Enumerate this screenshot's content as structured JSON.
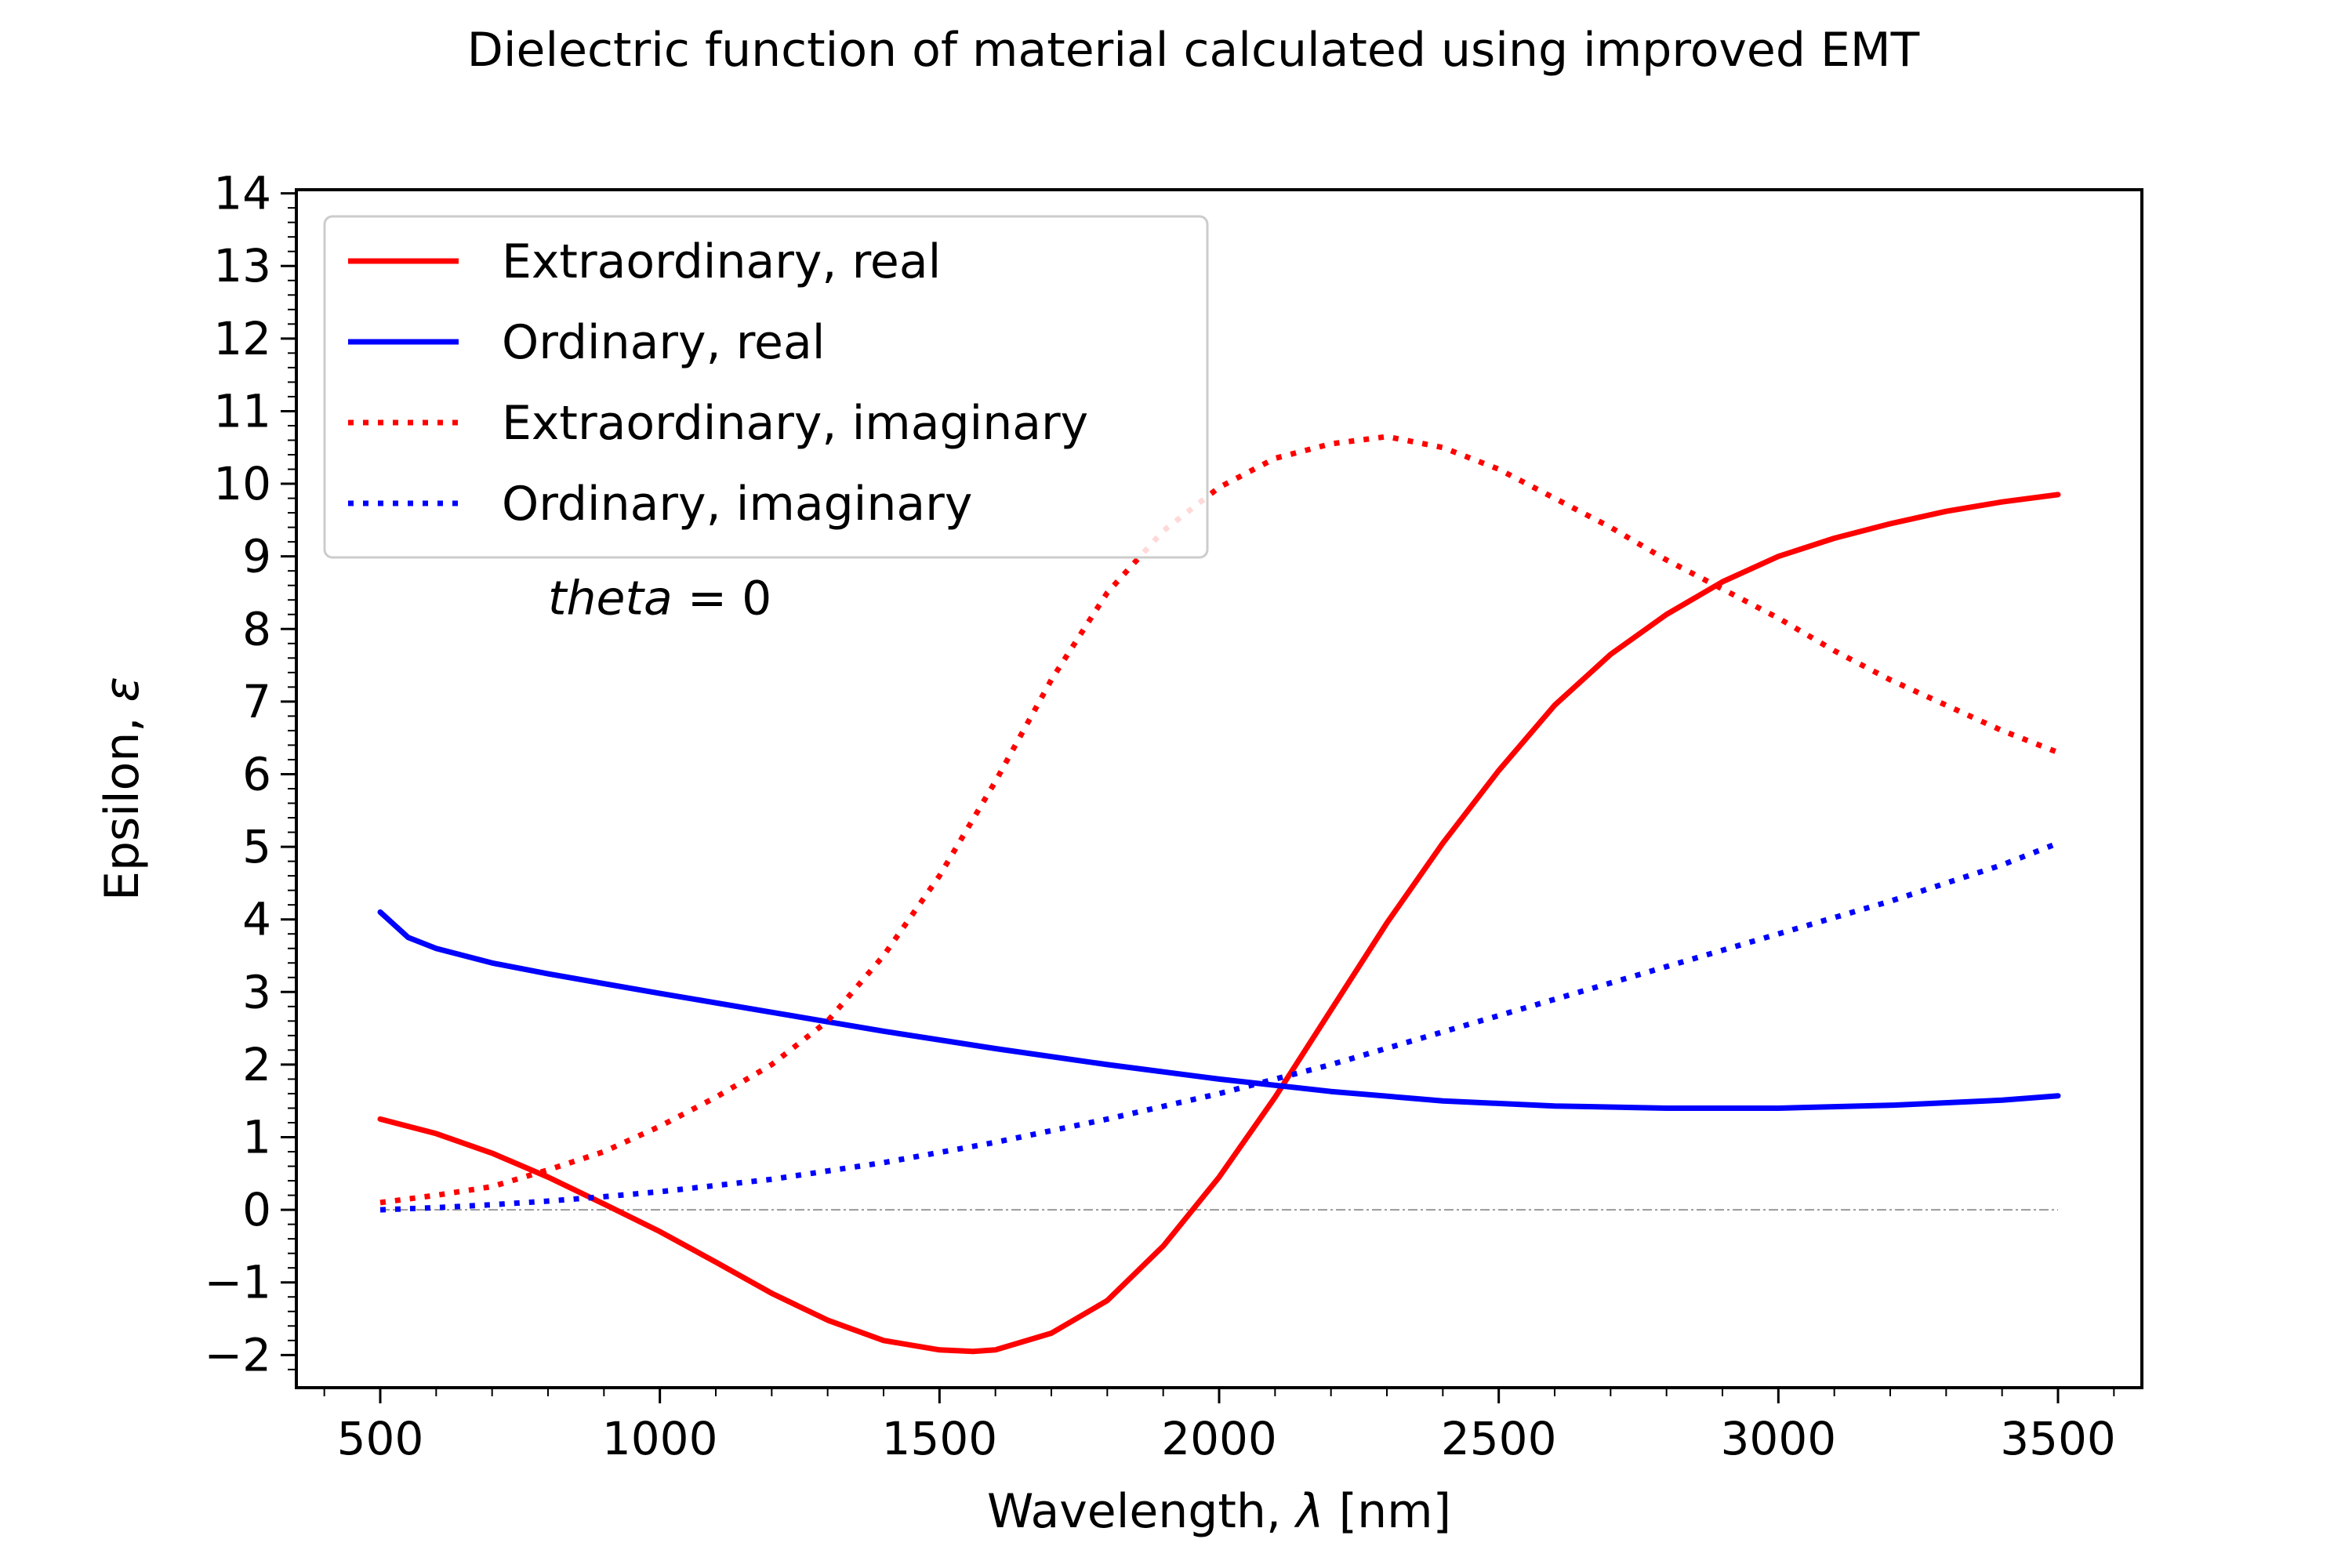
{
  "chart_data": {
    "type": "line",
    "title": "Dielectric function of material calculated using improved EMT",
    "xlabel": "Wavelength, λ [nm]",
    "xlabel_parts": {
      "prefix": "Wavelength, ",
      "symbol": "λ",
      "suffix": " [nm]"
    },
    "ylabel": "Epsilon, ε",
    "ylabel_parts": {
      "prefix": "Epsilon, ",
      "symbol": "ε"
    },
    "xlim": [
      350,
      3650
    ],
    "ylim": [
      -2.45,
      14.05
    ],
    "xticks": [
      500,
      1000,
      1500,
      2000,
      2500,
      3000,
      3500
    ],
    "xtick_labels": [
      "500",
      "1000",
      "1500",
      "2000",
      "2500",
      "3000",
      "3500"
    ],
    "yticks": [
      -2,
      -1,
      0,
      1,
      2,
      3,
      4,
      5,
      6,
      7,
      8,
      9,
      10,
      11,
      12,
      13,
      14
    ],
    "ytick_labels": [
      "−2",
      "−1",
      "0",
      "1",
      "2",
      "3",
      "4",
      "5",
      "6",
      "7",
      "8",
      "9",
      "10",
      "11",
      "12",
      "13",
      "14"
    ],
    "grid": false,
    "legend_position": "upper-left",
    "annotation": {
      "italic": "theta",
      "rest": " = 0",
      "x": 800,
      "y": 8.2
    },
    "zero_line": {
      "color": "#999999"
    },
    "series": [
      {
        "name": "Extraordinary, real",
        "color": "#ff0000",
        "style": "solid",
        "x": [
          500,
          600,
          700,
          800,
          900,
          1000,
          1100,
          1200,
          1300,
          1400,
          1500,
          1560,
          1600,
          1700,
          1800,
          1900,
          2000,
          2100,
          2200,
          2300,
          2400,
          2500,
          2600,
          2700,
          2800,
          2900,
          3000,
          3100,
          3200,
          3300,
          3400,
          3500
        ],
        "y": [
          1.25,
          1.05,
          0.78,
          0.45,
          0.08,
          -0.3,
          -0.72,
          -1.15,
          -1.52,
          -1.8,
          -1.93,
          -1.95,
          -1.93,
          -1.7,
          -1.25,
          -0.5,
          0.45,
          1.55,
          2.75,
          3.95,
          5.05,
          6.05,
          6.95,
          7.65,
          8.2,
          8.65,
          9.0,
          9.25,
          9.45,
          9.62,
          9.75,
          9.85
        ]
      },
      {
        "name": "Ordinary, real",
        "color": "#0000ff",
        "style": "solid",
        "x": [
          500,
          550,
          600,
          700,
          800,
          1000,
          1200,
          1400,
          1600,
          1800,
          2000,
          2200,
          2400,
          2600,
          2800,
          3000,
          3200,
          3400,
          3500
        ],
        "y": [
          4.1,
          3.75,
          3.6,
          3.4,
          3.25,
          2.98,
          2.72,
          2.46,
          2.22,
          2.0,
          1.8,
          1.63,
          1.5,
          1.43,
          1.4,
          1.4,
          1.44,
          1.51,
          1.57
        ]
      },
      {
        "name": "Extraordinary, imaginary",
        "color": "#ff0000",
        "style": "dotted",
        "x": [
          500,
          600,
          700,
          800,
          900,
          1000,
          1100,
          1200,
          1300,
          1400,
          1500,
          1600,
          1700,
          1800,
          1900,
          2000,
          2100,
          2200,
          2300,
          2400,
          2500,
          2600,
          2700,
          2800,
          2900,
          3000,
          3100,
          3200,
          3300,
          3400,
          3500
        ],
        "y": [
          0.1,
          0.2,
          0.32,
          0.55,
          0.8,
          1.15,
          1.55,
          2.0,
          2.6,
          3.5,
          4.6,
          5.9,
          7.3,
          8.5,
          9.35,
          9.95,
          10.35,
          10.55,
          10.65,
          10.5,
          10.2,
          9.8,
          9.4,
          8.95,
          8.55,
          8.15,
          7.7,
          7.3,
          6.95,
          6.6,
          6.3
        ]
      },
      {
        "name": "Ordinary, imaginary",
        "color": "#0000ff",
        "style": "dotted",
        "x": [
          500,
          600,
          700,
          800,
          900,
          1000,
          1200,
          1400,
          1600,
          1800,
          2000,
          2200,
          2400,
          2600,
          2800,
          3000,
          3200,
          3400,
          3500
        ],
        "y": [
          0.0,
          0.03,
          0.07,
          0.12,
          0.18,
          0.25,
          0.42,
          0.65,
          0.93,
          1.25,
          1.6,
          2.0,
          2.45,
          2.9,
          3.35,
          3.8,
          4.25,
          4.75,
          5.05
        ]
      }
    ]
  }
}
